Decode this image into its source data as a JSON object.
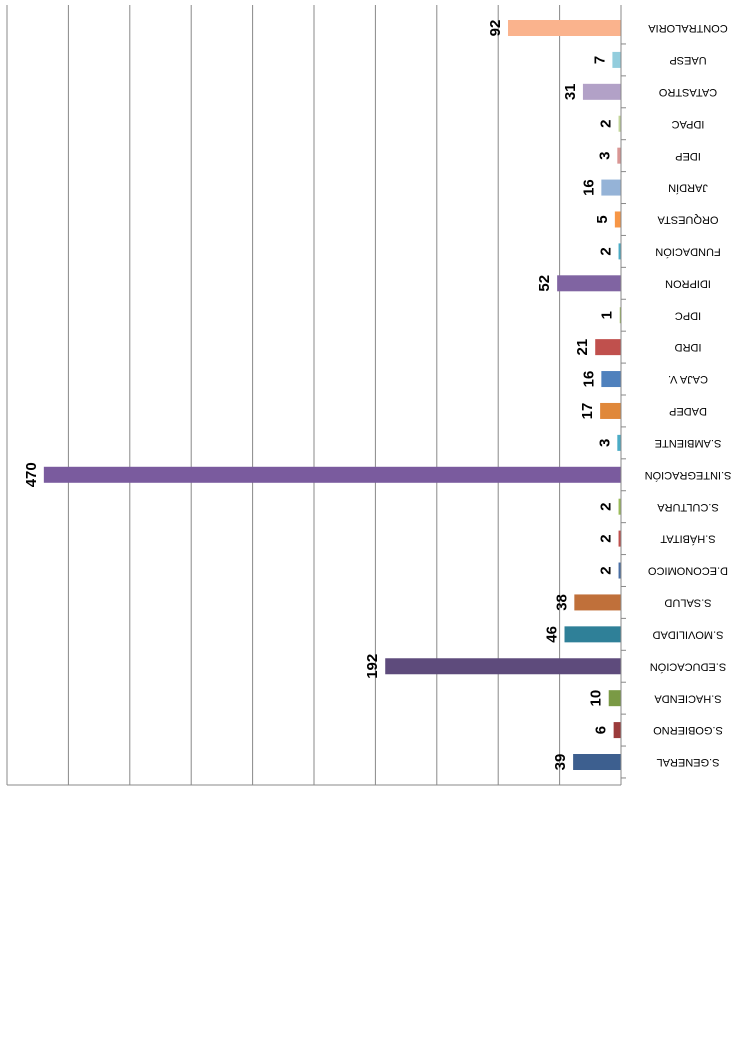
{
  "chart_data": {
    "type": "bar",
    "orientation": "horizontal",
    "categories": [
      "S.GENERAL",
      "S.GOBIERNO",
      "S.HACIENDA",
      "S.EDUCACIÓN",
      "S.MOVILIDAD",
      "S.SALUD",
      "D.ECONOMICO",
      "S.HÁBITAT",
      "S.CULTURA",
      "S.INTEGRACIÓN",
      "S.AMBIENTE",
      "DADEP",
      "CAJA V.",
      "IDRD",
      "IDPC",
      "IDIPRON",
      "FUNDACIÓN",
      "ORQUESTA",
      "JARDÍN",
      "IDEP",
      "IDPAC",
      "CATASTRO",
      "UAESP",
      "CONTRALORIA"
    ],
    "values": [
      39,
      6,
      10,
      192,
      46,
      38,
      2,
      2,
      2,
      470,
      3,
      17,
      16,
      21,
      1,
      52,
      2,
      5,
      16,
      3,
      2,
      31,
      7,
      92
    ],
    "colors": [
      "#3d5f8f",
      "#9b3b3b",
      "#7a9a45",
      "#5e4b7c",
      "#2f8098",
      "#c0703a",
      "#4a6fa5",
      "#c0504d",
      "#9bbb59",
      "#7a5b9e",
      "#4bacc6",
      "#e0883a",
      "#4f81bd",
      "#c0504d",
      "#9bbb59",
      "#8064a2",
      "#4bacc6",
      "#f79646",
      "#95b3d7",
      "#d99694",
      "#c3d69b",
      "#b2a1c7",
      "#93cddd",
      "#fab38d"
    ],
    "xlim": [
      0,
      500
    ],
    "xticks": [
      0,
      50,
      100,
      150,
      200,
      250,
      300,
      350,
      400,
      450,
      500
    ],
    "grid": true
  }
}
